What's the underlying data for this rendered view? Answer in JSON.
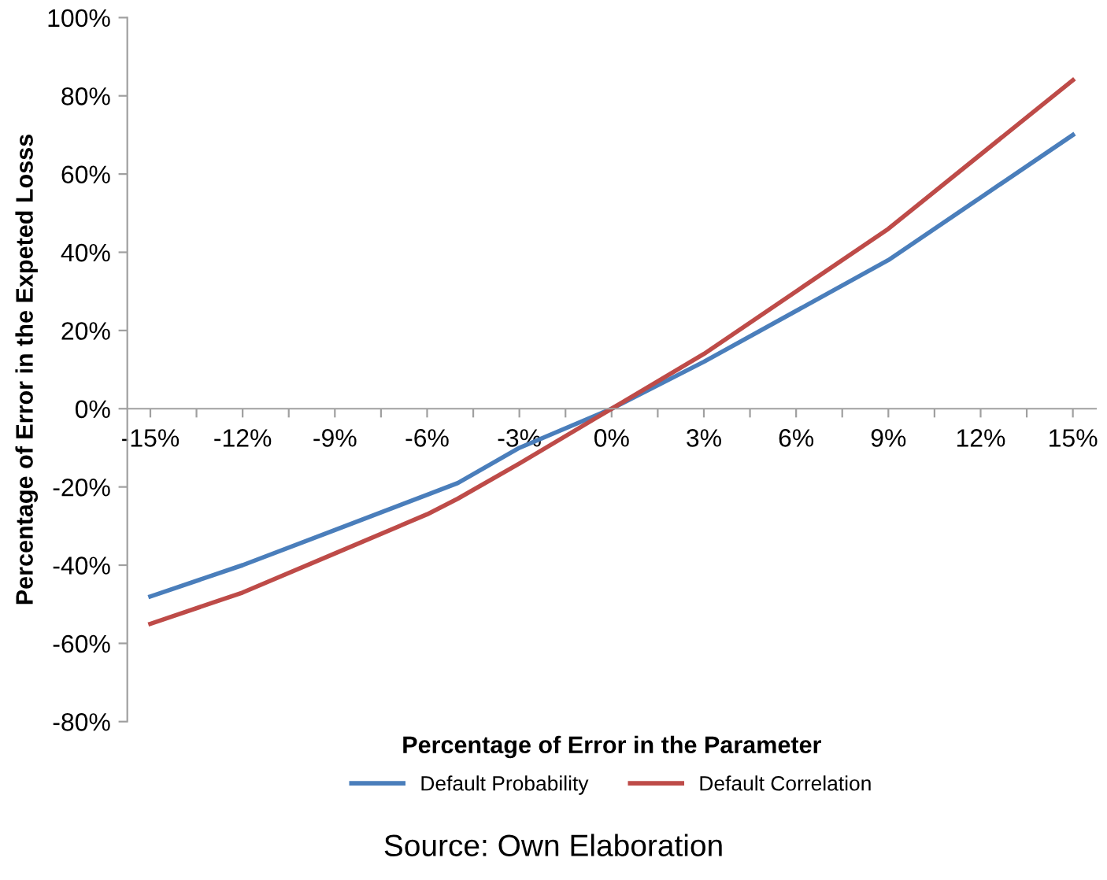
{
  "chart_data": {
    "type": "line",
    "xlabel": "Percentage of Error in the Parameter",
    "ylabel": "Percentage of Error in the Expeted Losss",
    "x": [
      -15,
      -12,
      -9,
      -6,
      -5,
      -3,
      0,
      3,
      6,
      9,
      12,
      15
    ],
    "series": [
      {
        "name": "Default Probability",
        "color": "#4a7ebb",
        "values": [
          -48,
          -40,
          -31,
          -22,
          -19,
          -10,
          0,
          12,
          25,
          38,
          54,
          70
        ]
      },
      {
        "name": "Default Correlation",
        "color": "#be4b48",
        "values": [
          -55,
          -47,
          -37,
          -27,
          -23,
          -14,
          0,
          14,
          30,
          46,
          65,
          84
        ]
      }
    ],
    "xlim": [
      -15.75,
      15.75
    ],
    "xticks": [
      {
        "value": -15,
        "label": "-15%"
      },
      {
        "value": -13.5,
        "label": null
      },
      {
        "value": -12,
        "label": "-12%"
      },
      {
        "value": -10.5,
        "label": null
      },
      {
        "value": -9,
        "label": "-9%"
      },
      {
        "value": -7.5,
        "label": null
      },
      {
        "value": -6,
        "label": "-6%"
      },
      {
        "value": -4.5,
        "label": null
      },
      {
        "value": -3,
        "label": "-3%"
      },
      {
        "value": -1.5,
        "label": null
      },
      {
        "value": 0,
        "label": "0%"
      },
      {
        "value": 1.5,
        "label": null
      },
      {
        "value": 3,
        "label": "3%"
      },
      {
        "value": 4.5,
        "label": null
      },
      {
        "value": 6,
        "label": "6%"
      },
      {
        "value": 7.5,
        "label": null
      },
      {
        "value": 9,
        "label": "9%"
      },
      {
        "value": 10.5,
        "label": null
      },
      {
        "value": 12,
        "label": "12%"
      },
      {
        "value": 13.5,
        "label": null
      },
      {
        "value": 15,
        "label": "15%"
      }
    ],
    "ylim": [
      -80,
      100
    ],
    "yticks": [
      {
        "value": -80,
        "label": "-80%"
      },
      {
        "value": -60,
        "label": "-60%"
      },
      {
        "value": -40,
        "label": "-40%"
      },
      {
        "value": -20,
        "label": "-20%"
      },
      {
        "value": 0,
        "label": "0%"
      },
      {
        "value": 20,
        "label": "20%"
      },
      {
        "value": 40,
        "label": "40%"
      },
      {
        "value": 60,
        "label": "60%"
      },
      {
        "value": 80,
        "label": "80%"
      },
      {
        "value": 100,
        "label": "100%"
      }
    ],
    "grid": false,
    "legend": "bottom",
    "marker": "none",
    "line_style": "solid",
    "annotations": [
      "Source: Own Elaboration"
    ]
  }
}
